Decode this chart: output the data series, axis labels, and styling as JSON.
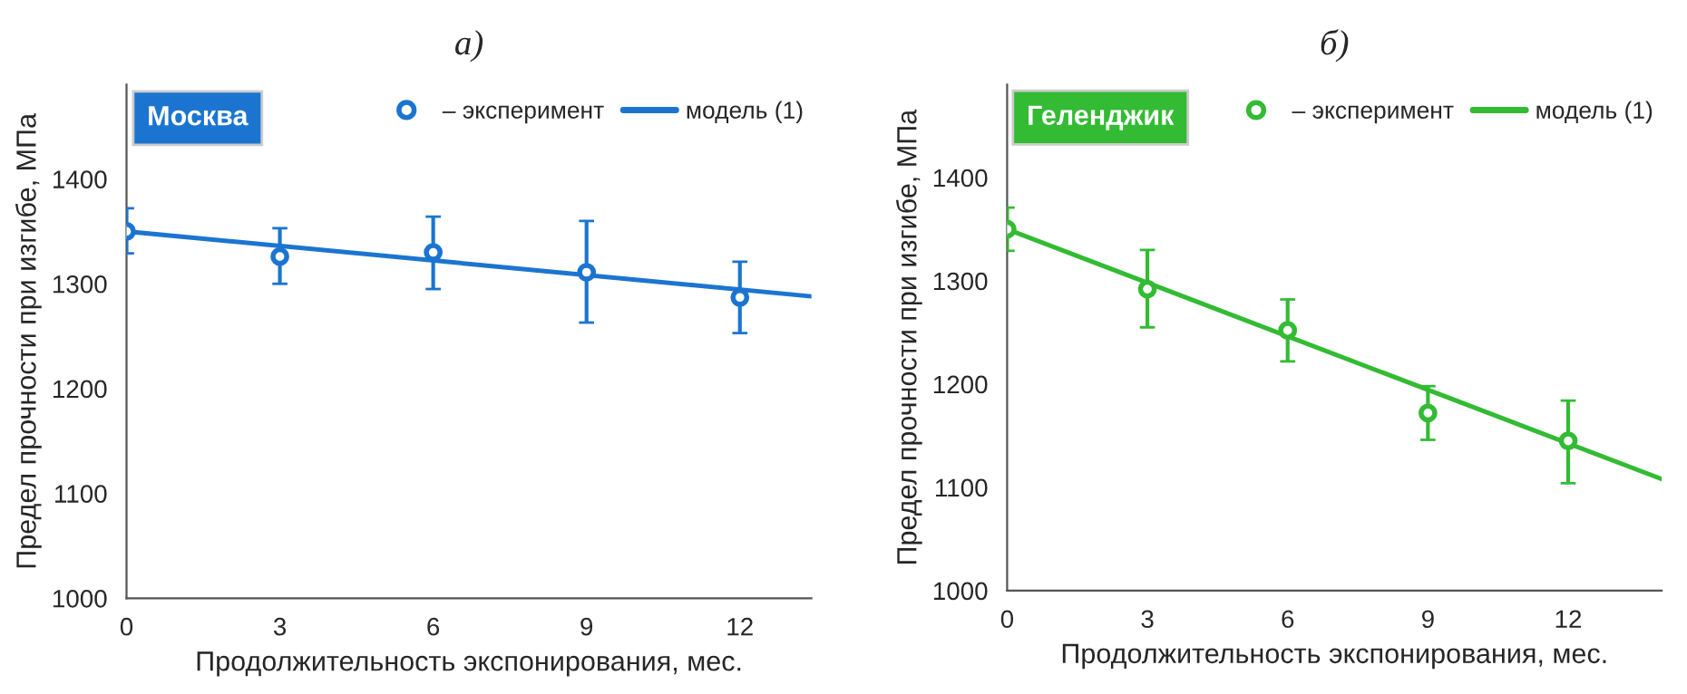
{
  "chart_data": [
    {
      "type": "scatter",
      "title": "а)",
      "xlabel": "Продолжительность экспонирования, мес.",
      "ylabel": "Предел прочности при изгибе, МПа",
      "annotations": [
        "Москва"
      ],
      "xlim": [
        0,
        13.4
      ],
      "xticks": [
        0,
        3,
        6,
        9,
        12
      ],
      "ylim": [
        1000,
        1490
      ],
      "yticks": [
        1000,
        1100,
        1200,
        1300,
        1400
      ],
      "grid": false,
      "legend": "top right",
      "series": [
        {
          "name": "– эксперимент",
          "color": "#1b75d0",
          "marker": "circle",
          "x": [
            0,
            3,
            6,
            9,
            12
          ],
          "values": [
            1350,
            1326,
            1330,
            1311,
            1287
          ],
          "errors": [
            [
              1329,
              1372
            ],
            [
              1300,
              1353
            ],
            [
              1295,
              1364
            ],
            [
              1263,
              1360
            ],
            [
              1253,
              1321
            ]
          ]
        },
        {
          "name": "модель (1)",
          "type": "line",
          "color": "#1b75d0",
          "line_style": "solid",
          "x": [
            0,
            13.4
          ],
          "values": [
            1350,
            1288
          ]
        }
      ]
    },
    {
      "type": "scatter",
      "title": "б)",
      "xlabel": "Продолжительность экспонирования, мес.",
      "ylabel": "Предел прочности при изгибе, МПа",
      "annotations": [
        "Геленджик"
      ],
      "xlim": [
        0,
        14
      ],
      "xticks": [
        0,
        3,
        6,
        9,
        12
      ],
      "ylim": [
        1000,
        1490
      ],
      "yticks": [
        1000,
        1100,
        1200,
        1300,
        1400
      ],
      "grid": false,
      "legend": "top right",
      "series": [
        {
          "name": "– эксперимент",
          "color": "#33bb33",
          "marker": "circle",
          "x": [
            0,
            3,
            6,
            9,
            12
          ],
          "values": [
            1350,
            1292,
            1252,
            1172,
            1145
          ],
          "errors": [
            [
              1329,
              1371
            ],
            [
              1255,
              1330
            ],
            [
              1222,
              1282
            ],
            [
              1146,
              1198
            ],
            [
              1104,
              1184
            ]
          ]
        },
        {
          "name": "модель (1)",
          "type": "line",
          "color": "#33bb33",
          "line_style": "solid",
          "x": [
            0,
            14
          ],
          "values": [
            1350,
            1108
          ]
        }
      ]
    }
  ]
}
